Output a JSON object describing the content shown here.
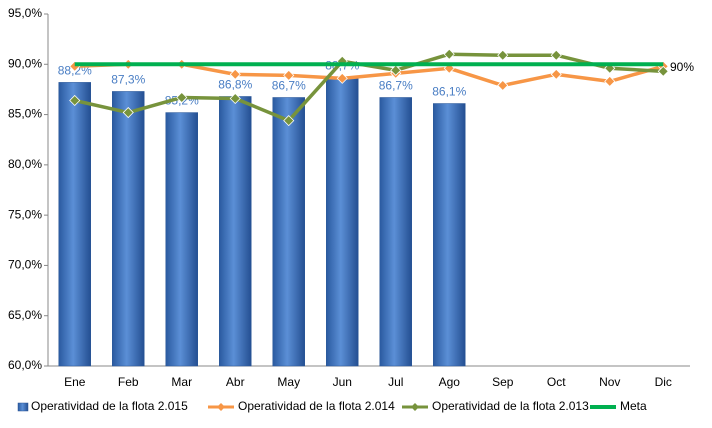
{
  "chart_data": {
    "type": "bar-line",
    "categories": [
      "Ene",
      "Feb",
      "Mar",
      "Abr",
      "May",
      "Jun",
      "Jul",
      "Ago",
      "Sep",
      "Oct",
      "Nov",
      "Dic"
    ],
    "ylim": [
      60,
      95
    ],
    "yticks": [
      {
        "value": 60,
        "label": "60,0%"
      },
      {
        "value": 65,
        "label": "65,0%"
      },
      {
        "value": 70,
        "label": "70,0%"
      },
      {
        "value": 75,
        "label": "75,0%"
      },
      {
        "value": 80,
        "label": "80,0%"
      },
      {
        "value": 85,
        "label": "85,0%"
      },
      {
        "value": 90,
        "label": "90,0%"
      },
      {
        "value": 95,
        "label": "95,0%"
      }
    ],
    "grid": false,
    "legend": "bottom",
    "annotation": "90%",
    "series": [
      {
        "name": "Operatividad de la flota 2.015",
        "kind": "bar",
        "color": "#3a6fb8",
        "values": [
          88.2,
          87.3,
          85.2,
          86.8,
          86.7,
          88.7,
          86.7,
          86.1,
          null,
          null,
          null,
          null
        ],
        "value_labels": [
          "88,2%",
          "87,3%",
          "85,2%",
          "86,8%",
          "86,7%",
          "88,7%",
          "86,7%",
          "86,1%",
          null,
          null,
          null,
          null
        ]
      },
      {
        "name": "Operatividad de la flota 2.014",
        "kind": "line",
        "color": "#f79646",
        "values": [
          89.8,
          90.0,
          90.0,
          89.0,
          88.9,
          88.6,
          89.1,
          89.6,
          87.9,
          89.0,
          88.3,
          89.8
        ]
      },
      {
        "name": "Operatividad de la flota 2.013",
        "kind": "line",
        "color": "#77933c",
        "values": [
          86.4,
          85.2,
          86.7,
          86.6,
          84.4,
          90.3,
          89.4,
          91.0,
          90.9,
          90.9,
          89.6,
          89.3
        ]
      },
      {
        "name": "Meta",
        "kind": "line",
        "color": "#00b050",
        "plain": true,
        "values": [
          90,
          90,
          90,
          90,
          90,
          90,
          90,
          90,
          90,
          90,
          90,
          90
        ]
      }
    ]
  }
}
